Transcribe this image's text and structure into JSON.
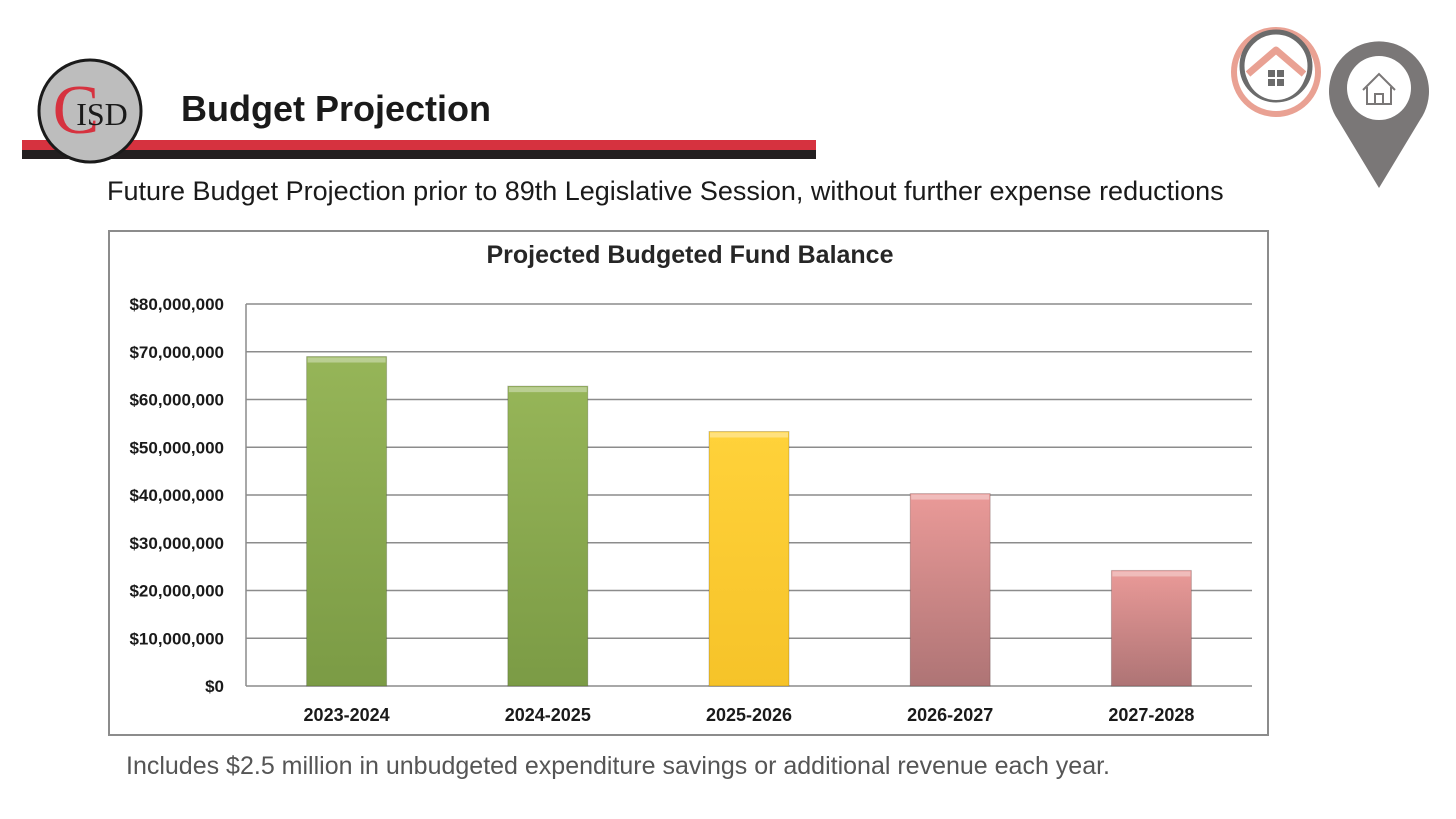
{
  "header": {
    "title": "Budget Projection",
    "logo_text": "ISD",
    "logo_letter": "C"
  },
  "subtitle": "Future Budget Projection prior to 89th Legislative Session, without further expense reductions",
  "footnote": "Includes $2.5 million in unbudgeted expenditure savings or additional revenue each year.",
  "icons": {
    "brand": "house-badge-icon",
    "nav": "home-pin-icon"
  },
  "colors": {
    "accent_red": "#d6323f",
    "accent_black": "#231f20",
    "green": "#86a44c",
    "yellow": "#fecb2f",
    "pink": "#e39593"
  },
  "chart_data": {
    "type": "bar",
    "title": "Projected Budgeted Fund Balance",
    "xlabel": "",
    "ylabel": "",
    "ylim": [
      0,
      80000000
    ],
    "yticks": [
      0,
      10000000,
      20000000,
      30000000,
      40000000,
      50000000,
      60000000,
      70000000,
      80000000
    ],
    "ytick_labels": [
      "$0",
      "$10,000,000",
      "$20,000,000",
      "$30,000,000",
      "$40,000,000",
      "$50,000,000",
      "$60,000,000",
      "$70,000,000",
      "$80,000,000"
    ],
    "categories": [
      "2023-2024",
      "2024-2025",
      "2025-2026",
      "2026-2027",
      "2027-2028"
    ],
    "values": [
      69000000,
      62800000,
      53300000,
      40300000,
      24200000
    ],
    "bar_colors": [
      "green",
      "green",
      "yellow",
      "pink",
      "pink"
    ],
    "grid": true,
    "legend": "none"
  }
}
